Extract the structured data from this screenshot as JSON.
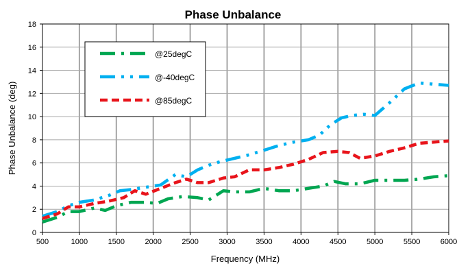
{
  "chart_data": {
    "type": "line",
    "title": "Phase Unbalance",
    "xlabel": "Frequency (MHz)",
    "ylabel": "Phase Unbalance (deg)",
    "xlim": [
      500,
      6000
    ],
    "ylim": [
      0,
      18
    ],
    "x_ticks": [
      "500",
      "1000",
      "1500",
      "2000",
      "2500",
      "3000",
      "3500",
      "4000",
      "4500",
      "5000",
      "5500",
      "6000"
    ],
    "y_ticks": [
      "0",
      "2",
      "4",
      "6",
      "8",
      "10",
      "12",
      "14",
      "16",
      "18"
    ],
    "grid": true,
    "legend_position": "top-left",
    "series": [
      {
        "name": "@25degC",
        "color": "#00a651",
        "dash": "dash-dot",
        "points": [
          [
            500,
            0.9
          ],
          [
            700,
            1.3
          ],
          [
            850,
            1.8
          ],
          [
            1000,
            1.8
          ],
          [
            1200,
            2.1
          ],
          [
            1350,
            1.9
          ],
          [
            1500,
            2.3
          ],
          [
            1700,
            2.6
          ],
          [
            1900,
            2.6
          ],
          [
            2050,
            2.5
          ],
          [
            2200,
            2.9
          ],
          [
            2400,
            3.1
          ],
          [
            2600,
            3.0
          ],
          [
            2750,
            2.8
          ],
          [
            2950,
            3.6
          ],
          [
            3100,
            3.5
          ],
          [
            3300,
            3.5
          ],
          [
            3500,
            3.8
          ],
          [
            3700,
            3.6
          ],
          [
            3900,
            3.6
          ],
          [
            4100,
            3.8
          ],
          [
            4300,
            4.0
          ],
          [
            4450,
            4.4
          ],
          [
            4600,
            4.2
          ],
          [
            4800,
            4.2
          ],
          [
            5000,
            4.5
          ],
          [
            5200,
            4.5
          ],
          [
            5400,
            4.5
          ],
          [
            5600,
            4.6
          ],
          [
            5800,
            4.8
          ],
          [
            6000,
            4.9
          ]
        ]
      },
      {
        "name": "@-40degC",
        "color": "#00b0f0",
        "dash": "dash-dot-dot",
        "points": [
          [
            500,
            1.4
          ],
          [
            700,
            1.8
          ],
          [
            850,
            2.3
          ],
          [
            1000,
            2.6
          ],
          [
            1200,
            2.8
          ],
          [
            1400,
            3.2
          ],
          [
            1550,
            3.6
          ],
          [
            1700,
            3.7
          ],
          [
            1900,
            3.9
          ],
          [
            2100,
            4.1
          ],
          [
            2300,
            5.0
          ],
          [
            2450,
            4.8
          ],
          [
            2600,
            5.4
          ],
          [
            2750,
            5.8
          ],
          [
            2900,
            6.1
          ],
          [
            3100,
            6.4
          ],
          [
            3300,
            6.7
          ],
          [
            3500,
            7.1
          ],
          [
            3700,
            7.5
          ],
          [
            3900,
            7.8
          ],
          [
            4100,
            8.0
          ],
          [
            4250,
            8.4
          ],
          [
            4400,
            9.3
          ],
          [
            4550,
            9.9
          ],
          [
            4700,
            10.1
          ],
          [
            4850,
            10.2
          ],
          [
            5000,
            10.1
          ],
          [
            5200,
            11.2
          ],
          [
            5400,
            12.4
          ],
          [
            5600,
            12.9
          ],
          [
            5800,
            12.8
          ],
          [
            6000,
            12.7
          ]
        ]
      },
      {
        "name": "@85degC",
        "color": "#e8141b",
        "dash": "dash",
        "points": [
          [
            500,
            1.2
          ],
          [
            700,
            1.6
          ],
          [
            850,
            2.2
          ],
          [
            1000,
            2.2
          ],
          [
            1200,
            2.5
          ],
          [
            1400,
            2.7
          ],
          [
            1600,
            3.0
          ],
          [
            1750,
            3.6
          ],
          [
            1900,
            3.3
          ],
          [
            2100,
            3.8
          ],
          [
            2300,
            4.3
          ],
          [
            2450,
            4.6
          ],
          [
            2600,
            4.3
          ],
          [
            2750,
            4.3
          ],
          [
            2950,
            4.7
          ],
          [
            3100,
            4.8
          ],
          [
            3300,
            5.4
          ],
          [
            3500,
            5.4
          ],
          [
            3700,
            5.6
          ],
          [
            3900,
            5.9
          ],
          [
            4100,
            6.3
          ],
          [
            4300,
            6.9
          ],
          [
            4500,
            7.0
          ],
          [
            4650,
            6.9
          ],
          [
            4800,
            6.4
          ],
          [
            5000,
            6.6
          ],
          [
            5200,
            7.0
          ],
          [
            5400,
            7.3
          ],
          [
            5600,
            7.7
          ],
          [
            5800,
            7.8
          ],
          [
            6000,
            7.9
          ]
        ]
      }
    ]
  }
}
